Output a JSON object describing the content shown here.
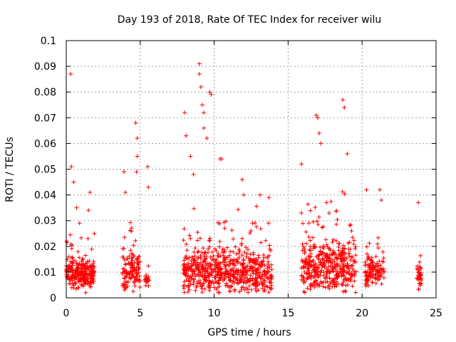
{
  "chart_data": {
    "type": "scatter",
    "title": "Day 193 of 2018, Rate Of TEC Index for receiver wilu",
    "xlabel": "GPS time / hours",
    "ylabel": "ROTI / TECUs",
    "xlim": [
      0,
      25
    ],
    "ylim": [
      0,
      0.1
    ],
    "xticks": [
      0,
      5,
      10,
      15,
      20,
      25
    ],
    "xtick_labels": [
      "0",
      "5",
      "10",
      "15",
      "20",
      "25"
    ],
    "yticks": [
      0,
      0.01,
      0.02,
      0.03,
      0.04,
      0.05,
      0.06,
      0.07,
      0.08,
      0.09,
      0.1
    ],
    "ytick_labels": [
      "0",
      "0.01",
      "0.02",
      "0.03",
      "0.04",
      "0.05",
      "0.06",
      "0.07",
      "0.08",
      "0.09",
      "0.1"
    ],
    "grid": true,
    "marker": "+",
    "marker_color": "#ff0000",
    "series": [
      {
        "name": "ROTI",
        "clusters": [
          {
            "x": [
              0.0,
              1.9
            ],
            "base": 0.009,
            "spread": 0.004,
            "n": 260
          },
          {
            "x": [
              3.8,
              5.0
            ],
            "base": 0.01,
            "spread": 0.005,
            "n": 130
          },
          {
            "x": [
              5.3,
              5.6
            ],
            "base": 0.007,
            "spread": 0.002,
            "n": 25
          },
          {
            "x": [
              7.9,
              13.9
            ],
            "base": 0.01,
            "spread": 0.006,
            "n": 650
          },
          {
            "x": [
              15.9,
              19.6
            ],
            "base": 0.012,
            "spread": 0.007,
            "n": 420
          },
          {
            "x": [
              20.2,
              21.5
            ],
            "base": 0.01,
            "spread": 0.004,
            "n": 120
          },
          {
            "x": [
              23.7,
              24.0
            ],
            "base": 0.008,
            "spread": 0.003,
            "n": 40
          }
        ],
        "x": [
          0.3,
          0.35,
          0.5,
          0.7,
          1.6,
          1.5,
          3.9,
          4.0,
          4.7,
          4.8,
          4.8,
          4.75,
          5.5,
          5.55,
          8.0,
          8.1,
          8.4,
          8.6,
          9.0,
          9.0,
          9.1,
          9.2,
          9.3,
          9.3,
          9.5,
          9.7,
          9.8,
          10.4,
          10.5,
          11.9,
          12.0,
          13.1,
          13.7,
          15.9,
          16.9,
          17.0,
          17.1,
          17.2,
          18.7,
          18.8,
          19.0,
          20.3,
          21.2,
          21.3,
          23.8,
          1.9,
          0.9
        ],
        "y": [
          0.087,
          0.051,
          0.045,
          0.035,
          0.041,
          0.034,
          0.049,
          0.041,
          0.068,
          0.062,
          0.055,
          0.049,
          0.051,
          0.043,
          0.072,
          0.063,
          0.055,
          0.048,
          0.091,
          0.087,
          0.082,
          0.075,
          0.072,
          0.066,
          0.062,
          0.08,
          0.079,
          0.054,
          0.054,
          0.046,
          0.04,
          0.04,
          0.039,
          0.052,
          0.071,
          0.07,
          0.064,
          0.06,
          0.077,
          0.074,
          0.056,
          0.042,
          0.042,
          0.038,
          0.037,
          0.025,
          0.029
        ]
      }
    ]
  }
}
